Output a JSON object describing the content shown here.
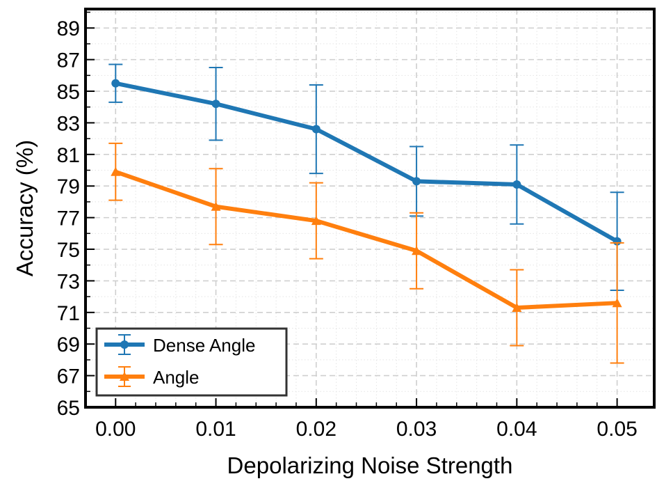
{
  "chart_data": {
    "type": "line",
    "title": "",
    "xlabel": "Depolarizing Noise Strength",
    "ylabel": "Accuracy (%)",
    "x": [
      0.0,
      0.01,
      0.02,
      0.03,
      0.04,
      0.05
    ],
    "x_tick_labels": [
      "0.00",
      "0.01",
      "0.02",
      "0.03",
      "0.04",
      "0.05"
    ],
    "xlim": [
      -0.003,
      0.0537
    ],
    "y_ticks": [
      65,
      67,
      69,
      71,
      73,
      75,
      77,
      79,
      81,
      83,
      85,
      87,
      89
    ],
    "y_tick_labels": [
      "65",
      "67",
      "69",
      "71",
      "73",
      "75",
      "77",
      "79",
      "81",
      "83",
      "85",
      "87",
      "89"
    ],
    "ylim": [
      65,
      90.2
    ],
    "grid": true,
    "legend_position": "bottom-left",
    "series": [
      {
        "name": "Dense Angle",
        "color": "#1f77b4",
        "marker": "circle",
        "values": [
          85.5,
          84.2,
          82.6,
          79.3,
          79.1,
          75.5
        ],
        "err_low": [
          84.3,
          81.9,
          79.8,
          77.1,
          76.6,
          72.4
        ],
        "err_high": [
          86.7,
          86.5,
          85.4,
          81.5,
          81.6,
          78.6
        ]
      },
      {
        "name": "Angle",
        "color": "#ff7f0e",
        "marker": "triangle",
        "values": [
          79.9,
          77.7,
          76.8,
          74.9,
          71.3,
          71.6
        ],
        "err_low": [
          78.1,
          75.3,
          74.4,
          72.5,
          68.9,
          67.8
        ],
        "err_high": [
          81.7,
          80.1,
          79.2,
          77.3,
          73.7,
          75.4
        ]
      }
    ]
  }
}
